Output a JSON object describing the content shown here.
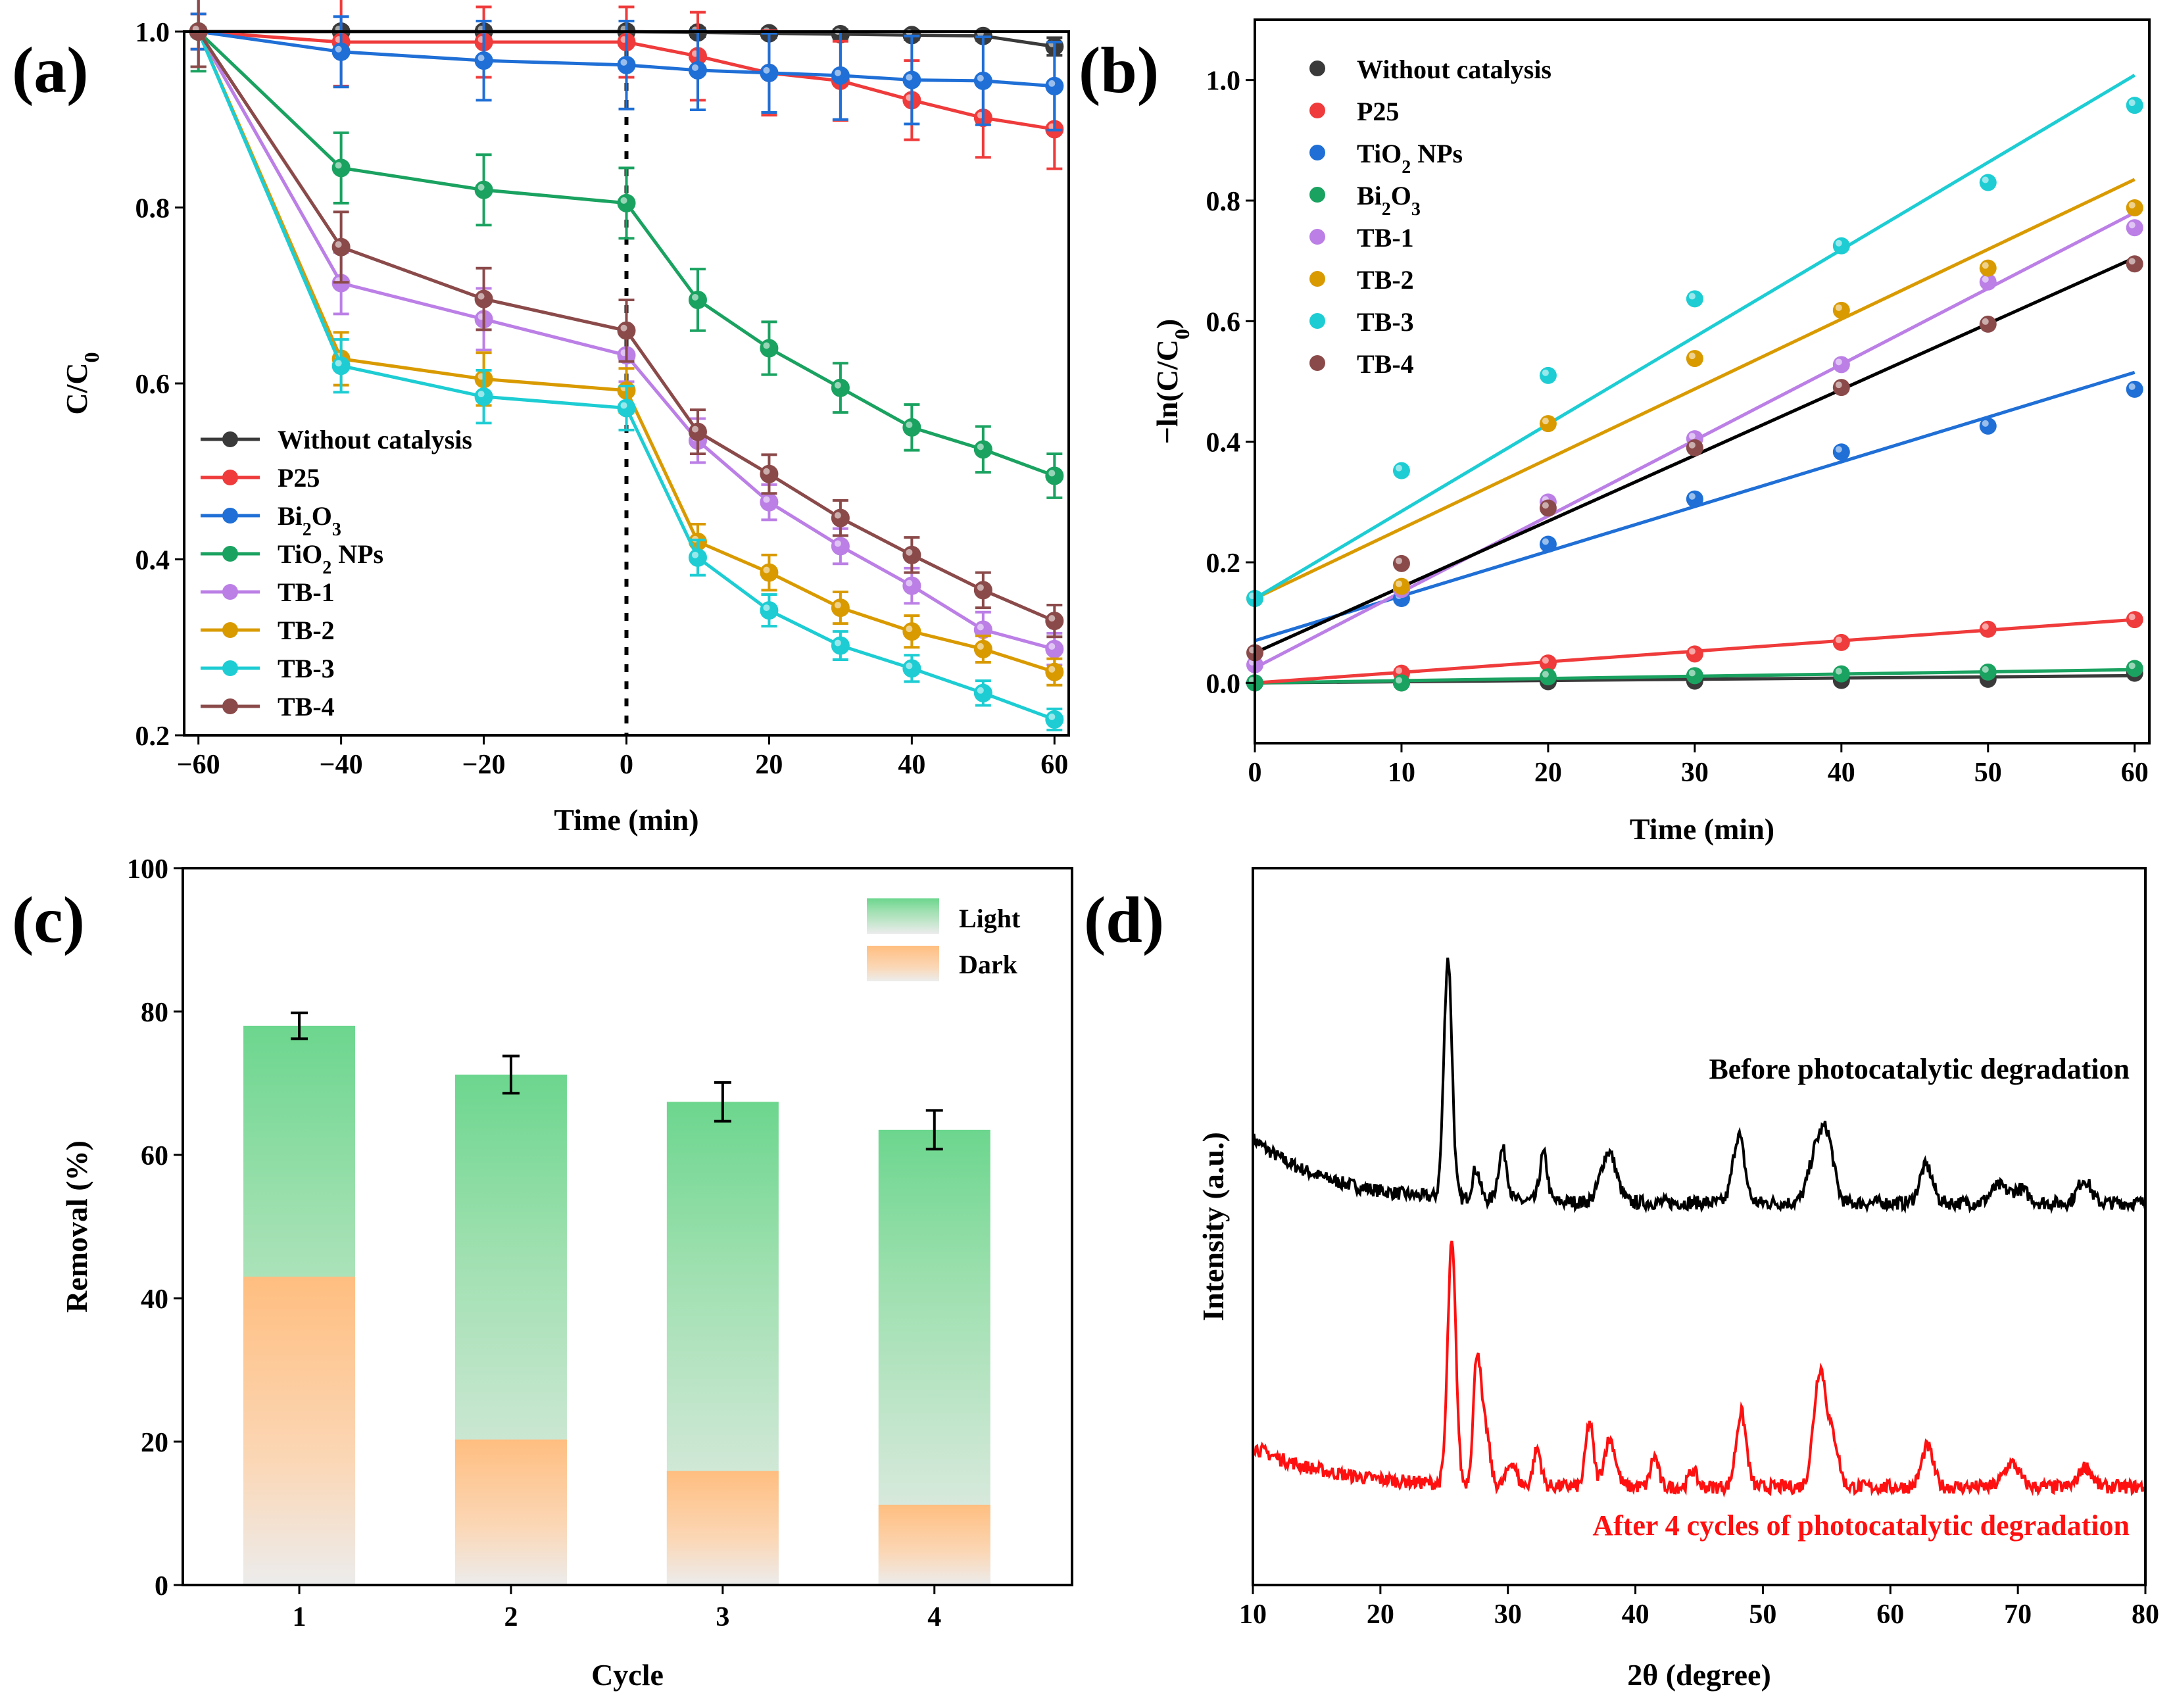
{
  "colors": {
    "without": "#3a3a3a",
    "p25": "#ef3b3b",
    "blue": "#1f6fd6",
    "green": "#1aa260",
    "tb1": "#bb7fe6",
    "tb2": "#d99a00",
    "tb3": "#1dcdd3",
    "tb4": "#8b4a4a",
    "light": "#6cd68e",
    "dark": "#ffbe80",
    "before": "#000000",
    "after": "#ff1010"
  },
  "chart_data": [
    {
      "panel": "(a)",
      "type": "line",
      "xlabel": "Time (min)",
      "ylabel_main": "C/C",
      "ylabel_sub": "0",
      "xlim": [
        -62,
        62
      ],
      "ylim": [
        0.2,
        1.0
      ],
      "xticks": [
        -60,
        -40,
        -20,
        0,
        20,
        40,
        60
      ],
      "xtick_labels": [
        "−60",
        "−40",
        "−20",
        "0",
        "20",
        "40",
        "60"
      ],
      "yticks": [
        0.2,
        0.4,
        0.6,
        0.8,
        1.0
      ],
      "ytick_labels": [
        "0.2",
        "0.4",
        "0.6",
        "0.8",
        "1.0"
      ],
      "x": [
        -60,
        -40,
        -20,
        0,
        10,
        20,
        30,
        40,
        50,
        60
      ],
      "divider_x": 0,
      "legend_position": "bottom-left",
      "series": [
        {
          "name": "Without catalysis",
          "sub": "",
          "tail": "",
          "color_key": "without",
          "values": [
            1.0,
            1.0,
            1.0,
            1.0,
            0.999,
            0.998,
            0.997,
            0.996,
            0.995,
            0.983
          ],
          "err": [
            0.005,
            0.005,
            0.005,
            0.005,
            0.005,
            0.005,
            0.005,
            0.005,
            0.005,
            0.01
          ]
        },
        {
          "name": "P25",
          "sub": "",
          "tail": "",
          "color_key": "p25",
          "values": [
            1.0,
            0.988,
            0.988,
            0.988,
            0.972,
            0.953,
            0.944,
            0.922,
            0.902,
            0.889
          ],
          "err": [
            0.02,
            0.05,
            0.04,
            0.04,
            0.05,
            0.048,
            0.045,
            0.045,
            0.045,
            0.045
          ]
        },
        {
          "name": "Bi",
          "sub": "2",
          "tail": "O3",
          "color_key": "blue",
          "values": [
            1.0,
            0.977,
            0.967,
            0.962,
            0.956,
            0.953,
            0.95,
            0.945,
            0.944,
            0.938
          ],
          "err": [
            0.02,
            0.04,
            0.045,
            0.05,
            0.045,
            0.045,
            0.05,
            0.05,
            0.05,
            0.05
          ]
        },
        {
          "name": "TiO",
          "sub": "2",
          "tail": " NPs",
          "color_key": "green",
          "values": [
            1.0,
            0.845,
            0.82,
            0.805,
            0.695,
            0.64,
            0.595,
            0.55,
            0.525,
            0.495
          ],
          "err": [
            0.045,
            0.04,
            0.04,
            0.04,
            0.035,
            0.03,
            0.028,
            0.026,
            0.026,
            0.025
          ]
        },
        {
          "name": "TB-1",
          "sub": "",
          "tail": "",
          "color_key": "tb1",
          "values": [
            1.0,
            0.714,
            0.673,
            0.632,
            0.535,
            0.465,
            0.415,
            0.37,
            0.32,
            0.298
          ],
          "err": [
            0.04,
            0.035,
            0.035,
            0.03,
            0.025,
            0.02,
            0.02,
            0.02,
            0.02,
            0.018
          ]
        },
        {
          "name": "TB-2",
          "sub": "",
          "tail": "",
          "color_key": "tb2",
          "values": [
            1.0,
            0.628,
            0.605,
            0.592,
            0.42,
            0.385,
            0.345,
            0.318,
            0.298,
            0.272
          ],
          "err": [
            0.04,
            0.03,
            0.03,
            0.025,
            0.02,
            0.02,
            0.018,
            0.018,
            0.015,
            0.015
          ]
        },
        {
          "name": "TB-3",
          "sub": "",
          "tail": "",
          "color_key": "tb3",
          "values": [
            1.0,
            0.62,
            0.585,
            0.572,
            0.402,
            0.342,
            0.302,
            0.276,
            0.248,
            0.218
          ],
          "err": [
            0.04,
            0.03,
            0.03,
            0.025,
            0.02,
            0.018,
            0.016,
            0.015,
            0.014,
            0.012
          ]
        },
        {
          "name": "TB-4",
          "sub": "",
          "tail": "",
          "color_key": "tb4",
          "values": [
            1.0,
            0.755,
            0.696,
            0.66,
            0.545,
            0.497,
            0.447,
            0.405,
            0.365,
            0.33
          ],
          "err": [
            0.04,
            0.04,
            0.035,
            0.035,
            0.025,
            0.022,
            0.02,
            0.02,
            0.02,
            0.018
          ]
        }
      ]
    },
    {
      "panel": "(b)",
      "type": "scatter",
      "xlabel": "Time (min)",
      "ylabel_main": "−ln(C/C",
      "ylabel_sub": "0",
      "ylabel_tail": ")",
      "xlim": [
        0,
        61
      ],
      "ylim": [
        -0.1,
        1.1
      ],
      "xticks": [
        0,
        10,
        20,
        30,
        40,
        50,
        60
      ],
      "xtick_labels": [
        "0",
        "10",
        "20",
        "30",
        "40",
        "50",
        "60"
      ],
      "yticks": [
        0.0,
        0.2,
        0.4,
        0.6,
        0.8,
        1.0
      ],
      "ytick_labels": [
        "0.0",
        "0.2",
        "0.4",
        "0.6",
        "0.8",
        "1.0"
      ],
      "x": [
        0,
        10,
        20,
        30,
        40,
        50,
        60
      ],
      "legend_position": "top-left",
      "series": [
        {
          "name": "Without catalysis",
          "sub": "",
          "tail": "",
          "color_key": "without",
          "values": [
            0,
            0.0,
            0.002,
            0.003,
            0.004,
            0.006,
            0.016
          ],
          "fit": [
            0,
            0.012
          ]
        },
        {
          "name": "P25",
          "sub": "",
          "tail": "",
          "color_key": "p25",
          "values": [
            0,
            0.016,
            0.033,
            0.048,
            0.067,
            0.089,
            0.105
          ],
          "fit": [
            0,
            0.105
          ]
        },
        {
          "name": "TiO",
          "sub": "2",
          "tail": " NPs",
          "color_key": "blue",
          "values": [
            0,
            0.14,
            0.23,
            0.305,
            0.383,
            0.426,
            0.487
          ],
          "fit": [
            0.07,
            0.515
          ]
        },
        {
          "name": "Bi",
          "sub": "2",
          "tail": "O3",
          "color_key": "green",
          "values": [
            0,
            0.0,
            0.01,
            0.012,
            0.015,
            0.018,
            0.024
          ],
          "fit": [
            0,
            0.022
          ]
        },
        {
          "name": "TB-1",
          "sub": "",
          "tail": "",
          "color_key": "tb1",
          "values": [
            0.03,
            0.155,
            0.3,
            0.405,
            0.528,
            0.665,
            0.755
          ],
          "fit": [
            0.025,
            0.78
          ]
        },
        {
          "name": "TB-2",
          "sub": "",
          "tail": "",
          "color_key": "tb2",
          "values": [
            0.14,
            0.16,
            0.43,
            0.538,
            0.618,
            0.688,
            0.788
          ],
          "fit": [
            0.14,
            0.835
          ]
        },
        {
          "name": "TB-3",
          "sub": "",
          "tail": "",
          "color_key": "tb3",
          "values": [
            0.14,
            0.352,
            0.51,
            0.637,
            0.725,
            0.83,
            0.958
          ],
          "fit": [
            0.14,
            1.008
          ]
        },
        {
          "name": "TB-4",
          "sub": "",
          "tail": "",
          "color_key": "tb4",
          "values": [
            0.05,
            0.198,
            0.29,
            0.39,
            0.49,
            0.595,
            0.695
          ],
          "fit": [
            0.05,
            0.705
          ]
        }
      ]
    },
    {
      "panel": "(c)",
      "type": "bar",
      "xlabel": "Cycle",
      "ylabel": "Removal (%)",
      "categories": [
        "1",
        "2",
        "3",
        "4"
      ],
      "ylim": [
        0,
        100
      ],
      "yticks": [
        0,
        20,
        40,
        60,
        80,
        100
      ],
      "ytick_labels": [
        "0",
        "20",
        "40",
        "60",
        "80",
        "100"
      ],
      "legend_position": "top-right",
      "series": [
        {
          "name": "Light",
          "color_key": "light",
          "values": [
            78.0,
            71.2,
            67.4,
            63.5
          ],
          "err": [
            1.8,
            2.6,
            2.7,
            2.7
          ]
        },
        {
          "name": "Dark",
          "color_key": "dark",
          "values": [
            43.0,
            20.3,
            15.9,
            11.2
          ]
        }
      ]
    },
    {
      "panel": "(d)",
      "type": "line",
      "xlabel": "2θ (degree)",
      "ylabel": "Intensity (a.u.)",
      "xlim": [
        10,
        80
      ],
      "xticks": [
        10,
        20,
        30,
        40,
        50,
        60,
        70,
        80
      ],
      "xtick_labels": [
        "10",
        "20",
        "30",
        "40",
        "50",
        "60",
        "70",
        "80"
      ],
      "y_ticks_shown": false,
      "series": [
        {
          "name": "Before photocatalytic degradation",
          "color_key": "before",
          "baseline": 5.65,
          "baseline_start": 6.6,
          "noise": 0.1,
          "peaks": [
            [
              25.3,
              3.55,
              0.32
            ],
            [
              27.5,
              0.45,
              0.3
            ],
            [
              29.6,
              0.75,
              0.35
            ],
            [
              32.8,
              0.7,
              0.3
            ],
            [
              37.9,
              0.75,
              0.6
            ],
            [
              48.1,
              1.0,
              0.45
            ],
            [
              54.2,
              0.75,
              0.6
            ],
            [
              55.1,
              0.8,
              0.5
            ],
            [
              62.8,
              0.55,
              0.5
            ],
            [
              68.5,
              0.25,
              0.6
            ],
            [
              70.2,
              0.2,
              0.6
            ],
            [
              75.2,
              0.35,
              0.5
            ]
          ]
        },
        {
          "name": "After 4 cycles of photocatalytic degradation",
          "color_key": "after",
          "baseline": 1.45,
          "baseline_start": 2.05,
          "noise": 0.1,
          "peaks": [
            [
              25.6,
              3.55,
              0.32
            ],
            [
              27.6,
              1.95,
              0.3
            ],
            [
              28.3,
              0.75,
              0.3
            ],
            [
              30.3,
              0.35,
              0.35
            ],
            [
              32.3,
              0.55,
              0.3
            ],
            [
              36.4,
              0.95,
              0.3
            ],
            [
              38.0,
              0.7,
              0.45
            ],
            [
              41.5,
              0.45,
              0.3
            ],
            [
              44.5,
              0.25,
              0.3
            ],
            [
              48.3,
              1.1,
              0.4
            ],
            [
              54.5,
              1.75,
              0.5
            ],
            [
              55.6,
              0.6,
              0.4
            ],
            [
              62.9,
              0.6,
              0.45
            ],
            [
              69.5,
              0.35,
              0.6
            ],
            [
              75.3,
              0.3,
              0.5
            ]
          ]
        }
      ]
    }
  ]
}
